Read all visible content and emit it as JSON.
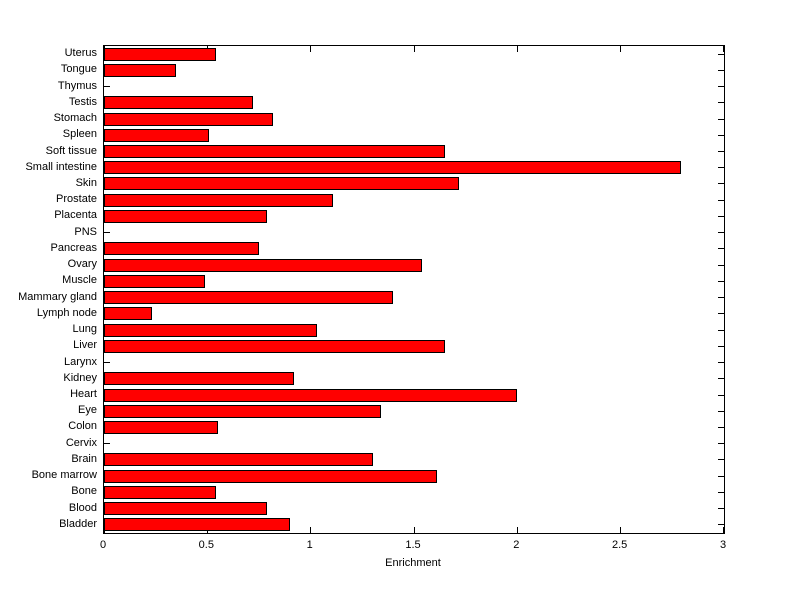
{
  "figure": {
    "background": "#ffffff"
  },
  "chart_data": {
    "type": "bar",
    "orientation": "horizontal",
    "xlabel": "Enrichment",
    "ylabel": "",
    "xlim": [
      0,
      3
    ],
    "xticks": [
      0,
      0.5,
      1,
      1.5,
      2,
      2.5,
      3
    ],
    "xtick_labels": [
      "0",
      "0.5",
      "1",
      "1.5",
      "2",
      "2.5",
      "3"
    ],
    "grid": false,
    "bar_color": "#ff0000",
    "bar_edge_color": "#000000",
    "categories": [
      "Uterus",
      "Tongue",
      "Thymus",
      "Testis",
      "Stomach",
      "Spleen",
      "Soft tissue",
      "Small intestine",
      "Skin",
      "Prostate",
      "Placenta",
      "PNS",
      "Pancreas",
      "Ovary",
      "Muscle",
      "Mammary gland",
      "Lymph node",
      "Lung",
      "Liver",
      "Larynx",
      "Kidney",
      "Heart",
      "Eye",
      "Colon",
      "Cervix",
      "Brain",
      "Bone marrow",
      "Bone",
      "Blood",
      "Bladder"
    ],
    "values": [
      0.54,
      0.35,
      0,
      0.72,
      0.82,
      0.51,
      1.65,
      2.79,
      1.72,
      1.11,
      0.79,
      0,
      0.75,
      1.54,
      0.49,
      1.4,
      0.23,
      1.03,
      1.65,
      0,
      0.92,
      2.0,
      1.34,
      0.55,
      0,
      1.3,
      1.61,
      0.54,
      0.79,
      0.9
    ]
  }
}
